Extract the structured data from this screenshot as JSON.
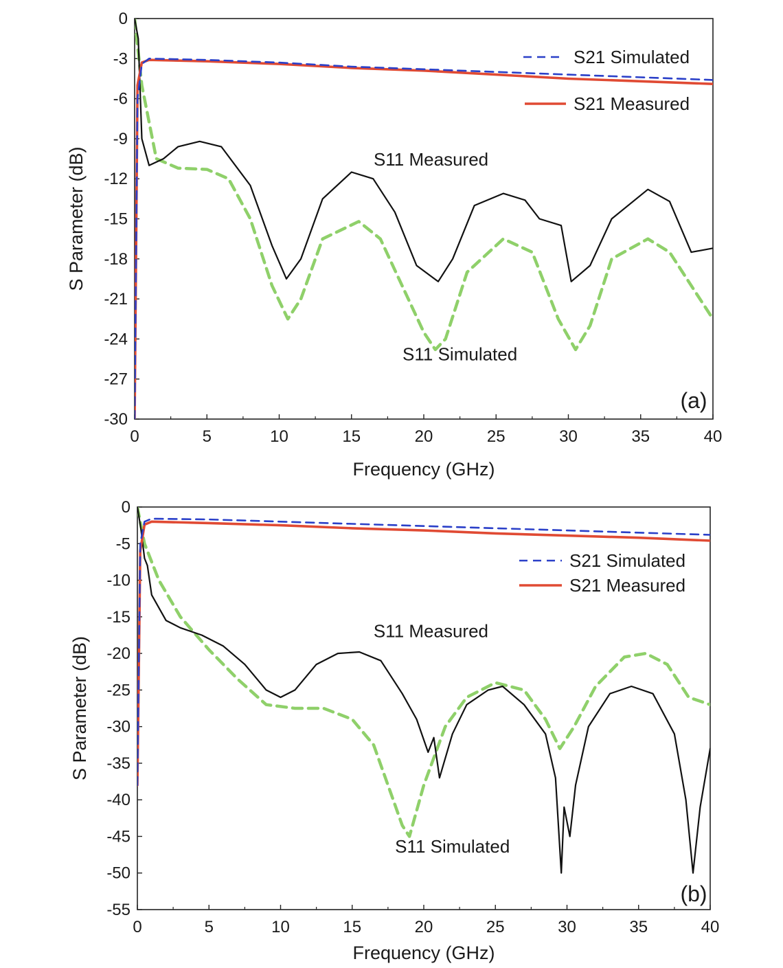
{
  "chart_data": [
    {
      "type": "line",
      "panel_label": "(a)",
      "xlabel": "Frequency (GHz)",
      "ylabel": "S Parameter (dB)",
      "xlim": [
        0,
        40
      ],
      "ylim": [
        -30,
        0
      ],
      "xticks": [
        0,
        5,
        10,
        15,
        20,
        25,
        30,
        35,
        40
      ],
      "yticks": [
        0,
        -3,
        -6,
        -9,
        -12,
        -15,
        -18,
        -21,
        -24,
        -27,
        -30
      ],
      "legend_position": "top-right",
      "legend": [
        {
          "label": "S21 Simulated",
          "series": "S21 Simulated"
        },
        {
          "label": "S21 Measured",
          "series": "S21 Measured"
        }
      ],
      "annotations": [
        {
          "text": "S11 Measured",
          "x": 20.5,
          "y": -11.0
        },
        {
          "text": "S11 Simulated",
          "x": 22.5,
          "y": -25.6
        }
      ],
      "series": [
        {
          "name": "S21 Simulated",
          "color": "#2a3fc8",
          "dash": "dashed",
          "x": [
            0,
            0.2,
            0.5,
            1,
            5,
            10,
            15,
            20,
            25,
            30,
            35,
            40
          ],
          "y": [
            -30,
            -6,
            -3.4,
            -3.0,
            -3.1,
            -3.3,
            -3.6,
            -3.8,
            -4.0,
            -4.2,
            -4.4,
            -4.6
          ]
        },
        {
          "name": "S21 Measured",
          "color": "#e04a33",
          "dash": "solid",
          "x": [
            0,
            0.2,
            0.5,
            1,
            5,
            10,
            15,
            20,
            25,
            30,
            35,
            40
          ],
          "y": [
            -30,
            -5,
            -3.3,
            -3.1,
            -3.2,
            -3.4,
            -3.7,
            -3.9,
            -4.2,
            -4.5,
            -4.7,
            -4.9
          ]
        },
        {
          "name": "S11 Measured",
          "color": "#111111",
          "dash": "solid",
          "x": [
            0,
            0.25,
            0.5,
            1,
            2,
            3,
            4.5,
            6,
            8,
            9.5,
            10.5,
            11.5,
            13,
            15,
            16.5,
            18,
            19.5,
            21,
            22,
            23.5,
            25.5,
            27,
            28,
            29.5,
            30.2,
            31.5,
            33,
            35.5,
            37,
            38.5,
            40
          ],
          "y": [
            0,
            -1.5,
            -9,
            -11,
            -10.5,
            -9.6,
            -9.2,
            -9.6,
            -12.5,
            -17,
            -19.5,
            -18,
            -13.5,
            -11.5,
            -12,
            -14.5,
            -18.5,
            -19.7,
            -18,
            -14,
            -13.1,
            -13.6,
            -15,
            -15.5,
            -19.7,
            -18.5,
            -15,
            -12.8,
            -13.7,
            -17.5,
            -17.2
          ]
        },
        {
          "name": "S11 Simulated",
          "color": "#8fd06a",
          "dash": "dashed",
          "x": [
            0,
            0.5,
            1.5,
            3,
            5,
            6.5,
            8,
            9.5,
            10.6,
            11.5,
            13,
            15.5,
            17,
            18.5,
            20,
            20.8,
            21.5,
            23,
            25.5,
            27.5,
            29.3,
            30.5,
            31.5,
            33,
            35.5,
            37,
            38.5,
            40
          ],
          "y": [
            0,
            -5,
            -10.5,
            -11.2,
            -11.3,
            -12,
            -15,
            -20,
            -22.5,
            -21,
            -16.5,
            -15.2,
            -16.5,
            -20,
            -23.5,
            -24.8,
            -24,
            -19,
            -16.5,
            -17.5,
            -22.5,
            -24.8,
            -23,
            -18,
            -16.5,
            -17.5,
            -20,
            -22.5
          ]
        }
      ]
    },
    {
      "type": "line",
      "panel_label": "(b)",
      "xlabel": "Frequency (GHz)",
      "ylabel": "S Parameter (dB)",
      "xlim": [
        0,
        40
      ],
      "ylim": [
        -55,
        0
      ],
      "xticks": [
        0,
        5,
        10,
        15,
        20,
        25,
        30,
        35,
        40
      ],
      "yticks": [
        0,
        -5,
        -10,
        -15,
        -20,
        -25,
        -30,
        -35,
        -40,
        -45,
        -50,
        -55
      ],
      "legend_position": "top-right",
      "legend": [
        {
          "label": "S21 Simulated",
          "series": "S21 Simulated"
        },
        {
          "label": "S21 Measured",
          "series": "S21 Measured"
        }
      ],
      "annotations": [
        {
          "text": "S11 Measured",
          "x": 20.5,
          "y": -17.8
        },
        {
          "text": "S11 Simulated",
          "x": 22.0,
          "y": -47.2
        }
      ],
      "series": [
        {
          "name": "S21 Simulated",
          "color": "#2a3fc8",
          "dash": "dashed",
          "x": [
            0,
            0.2,
            0.5,
            1,
            5,
            10,
            15,
            20,
            25,
            30,
            35,
            40
          ],
          "y": [
            -38,
            -5,
            -2.0,
            -1.6,
            -1.7,
            -2.0,
            -2.3,
            -2.6,
            -2.9,
            -3.2,
            -3.5,
            -3.8
          ]
        },
        {
          "name": "S21 Measured",
          "color": "#e04a33",
          "dash": "solid",
          "x": [
            0,
            0.2,
            0.5,
            1,
            5,
            10,
            15,
            20,
            25,
            30,
            35,
            40
          ],
          "y": [
            -38,
            -6,
            -2.4,
            -2.0,
            -2.2,
            -2.5,
            -2.9,
            -3.2,
            -3.6,
            -3.9,
            -4.2,
            -4.6
          ]
        },
        {
          "name": "S11 Measured",
          "color": "#111111",
          "dash": "solid",
          "x": [
            0,
            0.25,
            0.5,
            0.7,
            1,
            2,
            3,
            4.5,
            6,
            7.5,
            9,
            10,
            11,
            12.5,
            14,
            15.5,
            17,
            18.5,
            19.5,
            20.3,
            20.7,
            21.1,
            22,
            23,
            24.5,
            25.5,
            27,
            28.5,
            29.2,
            29.6,
            29.8,
            30.2,
            30.6,
            31.5,
            33,
            34.5,
            36,
            37.5,
            38.3,
            38.8,
            39.3,
            40
          ],
          "y": [
            0,
            -3,
            -7,
            -8,
            -12,
            -15.5,
            -16.5,
            -17.5,
            -19,
            -21.5,
            -25,
            -26,
            -25,
            -21.5,
            -20,
            -19.8,
            -21,
            -25.5,
            -29,
            -33.5,
            -31.5,
            -37,
            -31,
            -27,
            -25,
            -24.5,
            -27,
            -31,
            -37,
            -50,
            -41,
            -45,
            -38,
            -30,
            -25.5,
            -24.5,
            -25.5,
            -31,
            -40,
            -50,
            -41,
            -33
          ]
        },
        {
          "name": "S11 Simulated",
          "color": "#8fd06a",
          "dash": "dashed",
          "x": [
            0,
            0.5,
            1.5,
            3,
            5,
            7,
            9,
            11,
            13,
            15,
            16.5,
            17.5,
            18.5,
            19,
            20,
            21.5,
            23,
            25,
            27,
            28.5,
            29.5,
            30.5,
            32,
            34,
            35.5,
            37,
            38.5,
            40
          ],
          "y": [
            0,
            -5,
            -10,
            -15,
            -19.5,
            -23.5,
            -27,
            -27.5,
            -27.5,
            -29,
            -32.5,
            -38,
            -43.5,
            -45,
            -38,
            -30,
            -26,
            -24,
            -25,
            -29,
            -33,
            -30,
            -24.5,
            -20.5,
            -20,
            -21.5,
            -26,
            -27
          ]
        }
      ]
    }
  ]
}
